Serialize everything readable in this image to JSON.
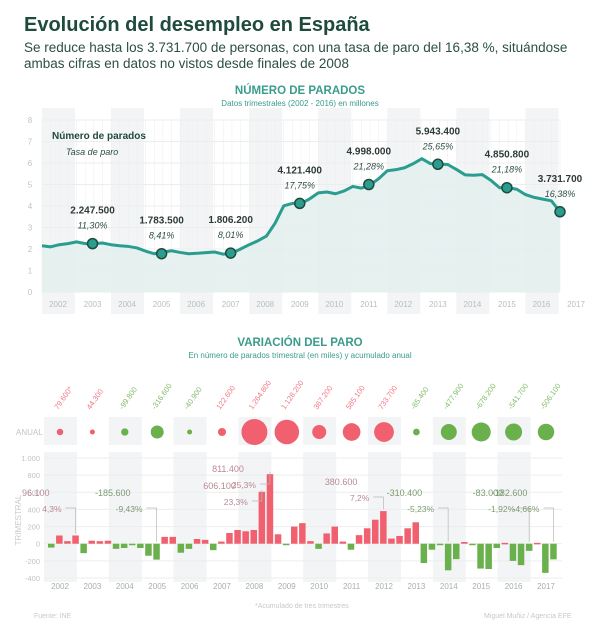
{
  "header": {
    "title": "Evolución del desempleo en España",
    "subtitle": "Se reduce hasta los 3.731.700 de personas, con una tasa de paro del 16,38 %, situándose ambas cifras en datos no vistos desde finales de 2008"
  },
  "colors": {
    "teal_line": "#2a9d8f",
    "teal_fill": "#e3f0ee",
    "teal_title": "#3a9c8c",
    "increase_red": "#f0606e",
    "decrease_green": "#6ab04c",
    "column_shade": "#f3f4f5",
    "grid": "#eceeee"
  },
  "footer": {
    "source": "Fuente: INE",
    "note": "*Acumulado de tres trimestres",
    "credit": "Miguel Muñiz / Agencia EFE"
  },
  "chart_data": [
    {
      "type": "area",
      "title": "NÚMERO DE PARADOS",
      "subtitle": "Datos trimestrales (2002 - 2016) en millones",
      "legend": {
        "primary": "Número de parados",
        "secondary": "Tasa de paro",
        "placement": "top-left"
      },
      "ylim": [
        0,
        8
      ],
      "yticks": [
        0,
        1,
        2,
        3,
        4,
        5,
        6,
        7,
        8
      ],
      "xticks": [
        "2002",
        "2003",
        "2004",
        "2005",
        "2006",
        "2007",
        "2008",
        "2009",
        "2010",
        "2011",
        "2012",
        "2013",
        "2014",
        "2015",
        "2016",
        "2017"
      ],
      "grid": true,
      "series": {
        "name": "Parados (millones)",
        "x_start": 2002.0,
        "step": 0.25,
        "values": [
          2.15,
          2.1,
          2.2,
          2.25,
          2.33,
          2.25,
          2.25,
          2.28,
          2.2,
          2.15,
          2.12,
          2.05,
          1.9,
          1.78,
          1.85,
          1.92,
          1.84,
          1.78,
          1.8,
          1.83,
          1.86,
          1.76,
          1.81,
          2.0,
          2.2,
          2.38,
          2.6,
          3.2,
          4.01,
          4.12,
          4.12,
          4.33,
          4.61,
          4.65,
          4.57,
          4.7,
          4.91,
          4.83,
          4.98,
          5.27,
          5.64,
          5.69,
          5.78,
          5.97,
          6.2,
          5.97,
          5.94,
          5.93,
          5.7,
          5.45,
          5.43,
          5.46,
          5.19,
          4.85,
          4.85,
          4.78,
          4.53,
          4.4,
          4.32,
          4.24,
          3.73
        ]
      },
      "annotations": [
        {
          "year": 2003,
          "value": "2.247.500",
          "rate": "11,30%",
          "y": 2.25
        },
        {
          "year": 2005,
          "value": "1.783.500",
          "rate": "8,41%",
          "y": 1.78
        },
        {
          "year": 2007,
          "value": "1.806.200",
          "rate": "8,01%",
          "y": 1.81
        },
        {
          "year": 2009,
          "value": "4.121.400",
          "rate": "17,75%",
          "y": 4.12
        },
        {
          "year": 2011,
          "value": "4.998.000",
          "rate": "21,28%",
          "y": 5.0
        },
        {
          "year": 2013,
          "value": "5.943.400",
          "rate": "25,65%",
          "y": 5.94
        },
        {
          "year": 2015,
          "value": "4.850.800",
          "rate": "21,18%",
          "y": 4.85
        },
        {
          "year": 2017,
          "value": "3.731.700",
          "rate": "16,38%",
          "y": 3.73
        }
      ]
    },
    {
      "type": "bubble",
      "title": "VARIACIÓN DEL PARO",
      "subtitle": "En número de parados trimestral (en miles) y acumulado anual",
      "row_label": "ANUAL",
      "categories": [
        "2002",
        "2003",
        "2004",
        "2005",
        "2006",
        "2007",
        "2008",
        "2009",
        "2010",
        "2011",
        "2012",
        "2013",
        "2014",
        "2015",
        "2016",
        "2017"
      ],
      "labels": [
        "79.600*",
        "44.300",
        "-99.800",
        "-316.600",
        "-40.900",
        "122.600",
        "1.264.800",
        "1.128.200",
        "367.200",
        "585.100",
        "733.700",
        "-85.400",
        "-477.900",
        "-678.200",
        "-541.700",
        "-506.100"
      ],
      "values": [
        79.6,
        44.3,
        -99.8,
        -316.6,
        -40.9,
        122.6,
        1264.8,
        1128.2,
        367.2,
        585.1,
        733.7,
        -85.4,
        -477.9,
        -678.2,
        -541.7,
        -506.1
      ]
    },
    {
      "type": "bar",
      "title": "TRIMESTRAL",
      "ylabel": "TRIMESTRAL",
      "ylim": [
        -400,
        1000
      ],
      "yticks": [
        -400,
        -200,
        0,
        200,
        400,
        600,
        800,
        1000
      ],
      "ytick_labels": [
        "-400",
        "-200",
        "0",
        "200",
        "400",
        "600",
        "800",
        "1.000"
      ],
      "xticks": [
        "2002",
        "2003",
        "2004",
        "2005",
        "2006",
        "2007",
        "2008",
        "2009",
        "2010",
        "2011",
        "2012",
        "2013",
        "2014",
        "2015",
        "2016",
        "2017"
      ],
      "grid": true,
      "x_start": 2002.0,
      "step": 0.25,
      "values": [
        -45,
        96,
        30,
        96,
        -110,
        35,
        30,
        35,
        -60,
        -50,
        -10,
        -50,
        -140,
        -185.6,
        80,
        80,
        -105,
        -60,
        55,
        45,
        -75,
        25,
        125,
        160,
        145,
        160,
        606.1,
        811.4,
        110,
        -10,
        200,
        240,
        30,
        -60,
        120,
        200,
        25,
        -70,
        100,
        180,
        280,
        380.6,
        60,
        90,
        180,
        250,
        -225,
        -70,
        -5,
        -310.4,
        -180,
        20,
        -10,
        -290,
        -295,
        -50,
        10,
        -200,
        -250,
        -83,
        10,
        -340,
        -182.6
      ],
      "annotations": [
        {
          "value": "96.100",
          "pct": "4,3%",
          "index": 3,
          "kind": "up"
        },
        {
          "value": "-185.600",
          "pct": "-9,43%",
          "index": 13,
          "kind": "down"
        },
        {
          "value": "606.100",
          "pct": "23,3%",
          "index": 26,
          "kind": "up"
        },
        {
          "value": "811.400",
          "pct": "25,3%",
          "index": 27,
          "kind": "up"
        },
        {
          "value": "380.600",
          "pct": "7,2%",
          "index": 41,
          "kind": "up"
        },
        {
          "value": "-310.400",
          "pct": "-5,23%",
          "index": 49,
          "kind": "down"
        },
        {
          "value": "-83.000",
          "pct": "-1,92%",
          "index": 59,
          "kind": "down"
        },
        {
          "value": "-182.600",
          "pct": "-4,66%",
          "index": 62,
          "kind": "down"
        }
      ]
    }
  ]
}
